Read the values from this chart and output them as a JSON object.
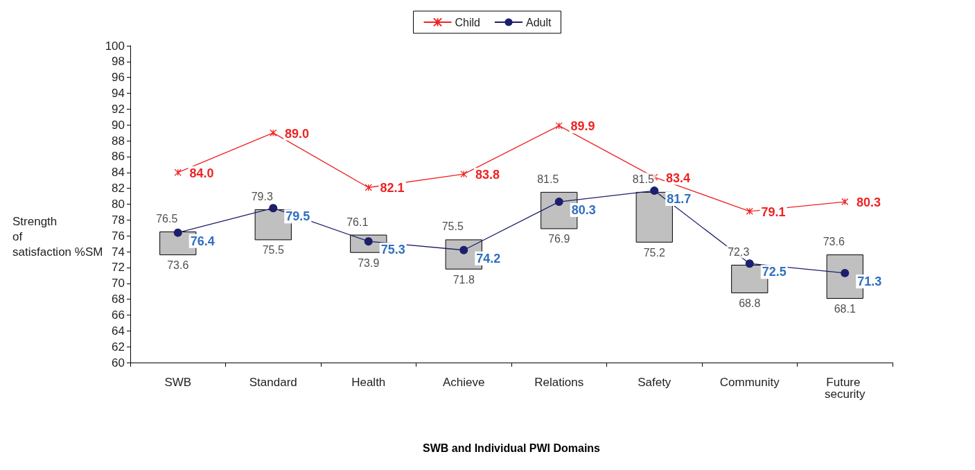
{
  "chart_data": {
    "type": "line",
    "xlabel": "SWB and Individual PWI Domains",
    "ylabel": "Strength of satisfaction %SM",
    "categories": [
      "SWB",
      "Standard",
      "Health",
      "Achieve",
      "Relations",
      "Safety",
      "Community",
      "Future security"
    ],
    "series": [
      {
        "type": "bar",
        "color": "#c0c0c0",
        "base": [
          73.6,
          75.5,
          73.9,
          71.8,
          76.9,
          75.2,
          68.8,
          68.1
        ],
        "values": [
          2.9,
          3.8,
          2.2,
          3.7,
          4.6,
          6.3,
          3.5,
          5.5
        ]
      },
      {
        "name": "Child",
        "color": "#ee2222",
        "marker": "cross",
        "values": [
          84.0,
          89.0,
          82.1,
          83.8,
          89.9,
          83.4,
          79.1,
          80.3
        ],
        "value_labels": [
          "84.0",
          "89.0",
          "82.1",
          "83.8",
          "89.9",
          "83.4",
          "79.1",
          "80.3"
        ]
      },
      {
        "name": "Adult",
        "color": "#1c1f6b",
        "marker": "circle",
        "values": [
          76.4,
          79.5,
          75.3,
          74.2,
          80.3,
          81.7,
          72.5,
          71.3
        ],
        "value_labels": [
          "76.4",
          "79.5",
          "75.3",
          "74.2",
          "80.3",
          "81.7",
          "72.5",
          "71.3"
        ]
      }
    ],
    "annotations": [
      {
        "text": "76.5",
        "x": "SWB",
        "y": 76.5
      },
      {
        "text": "73.6",
        "x": "SWB",
        "y": 73.6
      },
      {
        "text": "79.3",
        "x": "Standard",
        "y": 79.3
      },
      {
        "text": "75.5",
        "x": "Standard",
        "y": 75.5
      },
      {
        "text": "76.1",
        "x": "Health",
        "y": 76.1
      },
      {
        "text": "73.9",
        "x": "Health",
        "y": 73.9
      },
      {
        "text": "75.5",
        "x": "Achieve",
        "y": 75.5
      },
      {
        "text": "71.8",
        "x": "Achieve",
        "y": 71.8
      },
      {
        "text": "81.5",
        "x": "Relations",
        "y": 81.5
      },
      {
        "text": "76.9",
        "x": "Relations",
        "y": 76.9
      },
      {
        "text": "81.5",
        "x": "Safety",
        "y": 81.5
      },
      {
        "text": "75.2",
        "x": "Safety",
        "y": 75.2
      },
      {
        "text": "72.3",
        "x": "Community",
        "y": 72.3
      },
      {
        "text": "68.8",
        "x": "Community",
        "y": 68.8
      },
      {
        "text": "73.6",
        "x": "Future security",
        "y": 73.6
      },
      {
        "text": "68.1",
        "x": "Future security",
        "y": 68.1
      }
    ],
    "ylim": [
      60,
      100
    ],
    "yticks": [
      60,
      62,
      64,
      66,
      68,
      70,
      72,
      74,
      76,
      78,
      80,
      82,
      84,
      86,
      88,
      90,
      92,
      94,
      96,
      98,
      100
    ],
    "grid": false,
    "legend": "top"
  }
}
